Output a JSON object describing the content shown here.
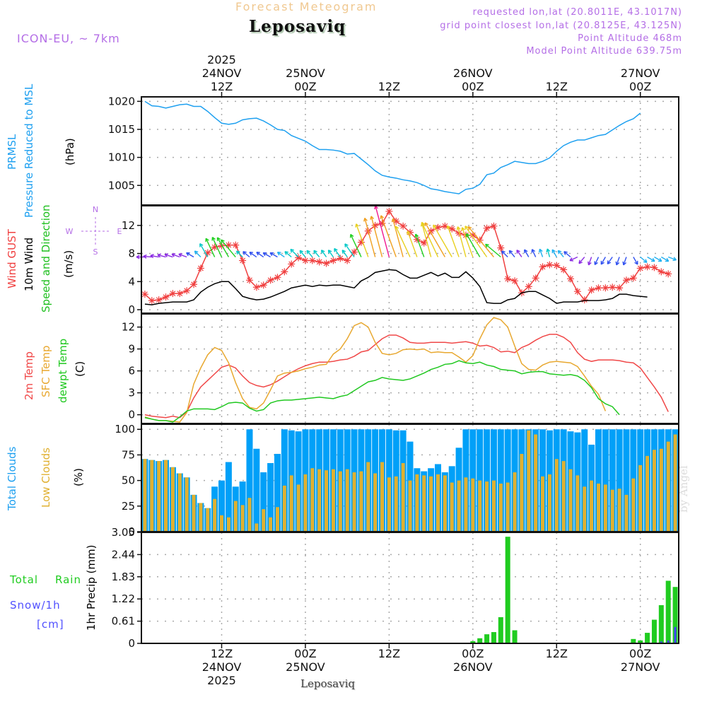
{
  "header": {
    "title": "Forecast Meteogram",
    "location": "Leposaviq",
    "model": "ICON-EU, ~ 7km",
    "requested": "requested lon,lat (20.8011E, 43.1017N)",
    "grid_point": "grid point closest lon,lat (20.8125E, 43.125N)",
    "point_altitude": "Point Altitude 468m",
    "model_altitude": "Model Point Altitude 639.75m"
  },
  "footer": {
    "location": "Leposaviq",
    "watermark": "by Angel"
  },
  "colors": {
    "pressure": "#1ea0f0",
    "gust": "#f04040",
    "wind10m": "#000000",
    "t2m": "#f04848",
    "tsfc": "#e8a830",
    "dewpt": "#20c820",
    "total_clouds": "#00a0f8",
    "low_clouds": "#e0b030",
    "rain": "#20cc20",
    "snow": "#4040ff",
    "label_purple": "#b46ee6"
  },
  "time_axis": {
    "top_labels": [
      {
        "hours": 12,
        "lines": [
          "2025",
          "24NOV",
          "12Z"
        ]
      },
      {
        "hours": 24,
        "lines": [
          "25NOV",
          "00Z"
        ]
      },
      {
        "hours": 36,
        "lines": [
          "12Z"
        ]
      },
      {
        "hours": 48,
        "lines": [
          "26NOV",
          "00Z"
        ]
      },
      {
        "hours": 60,
        "lines": [
          "12Z"
        ]
      },
      {
        "hours": 72,
        "lines": [
          "27NOV",
          "00Z"
        ]
      }
    ],
    "bottom_labels": [
      {
        "hours": 12,
        "lines": [
          "12Z",
          "24NOV",
          "2025"
        ]
      },
      {
        "hours": 24,
        "lines": [
          "00Z",
          "25NOV"
        ]
      },
      {
        "hours": 36,
        "lines": [
          "12Z"
        ]
      },
      {
        "hours": 48,
        "lines": [
          "00Z",
          "26NOV"
        ]
      },
      {
        "hours": 60,
        "lines": [
          "12Z"
        ]
      },
      {
        "hours": 72,
        "lines": [
          "00Z",
          "27NOV"
        ]
      }
    ],
    "range_hours": [
      0.5,
      77.5
    ],
    "hours_note": "hours since 24NOV2025 00Z"
  },
  "chart_data": [
    {
      "type": "line",
      "panel": "pressure",
      "labels": [
        "PRMSL",
        "Pressure Reduced to MSL"
      ],
      "ylabel": "(hPa)",
      "yticks": [
        1005,
        1010,
        1015,
        1020
      ],
      "ylim": [
        1001.5,
        1020.8
      ],
      "x_start_hour": 1,
      "x_step_hours": 1,
      "series": [
        {
          "name": "PRMSL",
          "values": [
            1020.0,
            1019.2,
            1019.1,
            1018.8,
            1019.1,
            1019.4,
            1019.5,
            1019.1,
            1019.1,
            1018.2,
            1017.1,
            1016.1,
            1015.9,
            1016.1,
            1016.7,
            1016.9,
            1017.0,
            1016.5,
            1015.8,
            1015.0,
            1014.8,
            1013.9,
            1013.4,
            1012.9,
            1012.1,
            1011.4,
            1011.4,
            1011.3,
            1011.1,
            1010.6,
            1010.7,
            1009.7,
            1008.7,
            1007.6,
            1006.8,
            1006.5,
            1006.3,
            1006.0,
            1005.8,
            1005.5,
            1005.0,
            1004.4,
            1004.2,
            1003.9,
            1003.7,
            1003.5,
            1004.3,
            1004.5,
            1005.2,
            1006.9,
            1007.2,
            1008.2,
            1008.7,
            1009.3,
            1009.1,
            1008.9,
            1008.9,
            1009.3,
            1009.9,
            1011.1,
            1012.1,
            1012.7,
            1013.1,
            1013.1,
            1013.5,
            1013.9,
            1014.1,
            1014.9,
            1015.7,
            1016.4,
            1016.9,
            1017.9
          ]
        }
      ]
    },
    {
      "type": "line",
      "panel": "wind",
      "labels": [
        "Wind GUST",
        "10m Wind",
        "Speed and Direction"
      ],
      "ylabel": "(m/s)",
      "compass": {
        "N": "N",
        "S": "S",
        "W": "W",
        "E": "E"
      },
      "yticks": [
        0,
        4,
        8,
        12
      ],
      "ylim": [
        -0.5,
        14.8
      ],
      "x_start_hour": 1,
      "x_step_hours": 1,
      "series": [
        {
          "name": "Wind GUST",
          "values": [
            2.2,
            1.3,
            1.4,
            1.8,
            2.3,
            2.3,
            2.7,
            3.6,
            5.9,
            8.1,
            8.9,
            9.1,
            9.2,
            9.2,
            7.0,
            4.2,
            3.2,
            3.5,
            4.2,
            4.6,
            5.4,
            6.5,
            7.4,
            7.0,
            7.0,
            6.8,
            6.6,
            7.0,
            7.3,
            7.0,
            8.2,
            9.6,
            11.2,
            12.0,
            12.3,
            14.0,
            12.6,
            11.9,
            11.0,
            10.0,
            9.5,
            11.2,
            11.7,
            11.9,
            11.5,
            10.9,
            10.6,
            10.6,
            9.9,
            11.6,
            11.9,
            8.8,
            4.4,
            4.1,
            2.4,
            3.3,
            4.5,
            6.1,
            6.4,
            6.3,
            5.7,
            4.4,
            2.6,
            1.4,
            2.8,
            3.1,
            3.1,
            3.2,
            3.1,
            4.2,
            4.5,
            5.9,
            6.1,
            6.0,
            5.4,
            5.1
          ]
        },
        {
          "name": "10m Wind",
          "values": [
            0.8,
            0.7,
            0.9,
            1.0,
            1.1,
            1.1,
            1.1,
            1.4,
            2.5,
            3.2,
            3.7,
            4.0,
            4.0,
            3.0,
            1.9,
            1.6,
            1.4,
            1.5,
            1.8,
            2.2,
            2.6,
            3.1,
            3.3,
            3.5,
            3.3,
            3.5,
            3.4,
            3.5,
            3.5,
            3.3,
            3.1,
            4.1,
            4.6,
            5.3,
            5.5,
            5.7,
            5.6,
            5.0,
            4.5,
            4.5,
            4.9,
            5.3,
            4.8,
            5.2,
            4.6,
            4.6,
            5.4,
            4.5,
            3.3,
            1.0,
            0.9,
            0.9,
            1.4,
            1.6,
            2.4,
            2.6,
            2.6,
            2.1,
            1.6,
            0.9,
            1.1,
            1.1,
            1.1,
            1.3,
            1.3,
            1.3,
            1.4,
            1.6,
            2.2,
            2.2,
            2.0,
            1.9,
            1.8
          ]
        },
        {
          "name": "Wind Direction (arrow toward, deg from N)",
          "values": [
            270,
            275,
            280,
            285,
            288,
            290,
            290,
            300,
            315,
            330,
            335,
            335,
            330,
            320,
            315,
            310,
            305,
            305,
            300,
            300,
            305,
            310,
            315,
            320,
            320,
            320,
            325,
            325,
            325,
            325,
            325,
            335,
            340,
            345,
            345,
            345,
            340,
            345,
            335,
            340,
            340,
            345,
            335,
            330,
            330,
            340,
            345,
            340,
            330,
            325,
            320,
            310,
            315,
            320,
            325,
            330,
            335,
            340,
            345,
            330,
            320,
            310,
            245,
            220,
            200,
            205,
            210,
            215,
            200,
            200,
            150,
            130,
            120,
            120,
            120,
            110
          ]
        }
      ]
    },
    {
      "type": "line",
      "panel": "temperature",
      "labels": [
        "2m Temp",
        "SFC Temp",
        "dewpt Temp"
      ],
      "ylabel": "(C)",
      "yticks": [
        0,
        3,
        6,
        9,
        12
      ],
      "ylim": [
        -1.2,
        13.8
      ],
      "x_start_hour": 1,
      "x_step_hours": 1,
      "series": [
        {
          "name": "2m Temp",
          "values": [
            0.0,
            -0.2,
            -0.3,
            -0.4,
            -0.2,
            -0.4,
            0.4,
            2.3,
            3.8,
            4.7,
            5.6,
            6.5,
            6.8,
            6.4,
            5.3,
            4.4,
            4.0,
            3.8,
            4.1,
            4.6,
            5.2,
            5.8,
            6.3,
            6.7,
            7.0,
            7.2,
            7.2,
            7.3,
            7.5,
            7.6,
            8.0,
            8.6,
            8.8,
            9.6,
            10.4,
            10.9,
            10.9,
            10.5,
            9.9,
            9.8,
            9.8,
            9.9,
            9.9,
            9.9,
            9.8,
            9.9,
            10.0,
            9.8,
            9.4,
            9.5,
            9.2,
            8.6,
            8.7,
            8.5,
            9.2,
            9.6,
            10.2,
            10.7,
            11.0,
            11.0,
            10.6,
            9.9,
            8.5,
            7.6,
            7.3,
            7.5,
            7.5,
            7.5,
            7.4,
            7.2,
            7.1,
            6.4,
            5.1,
            3.8,
            2.4,
            0.4
          ]
        },
        {
          "name": "SFC Temp",
          "values": [
            -0.3,
            -0.6,
            -0.8,
            -0.8,
            -0.9,
            -1.0,
            0.3,
            4.2,
            6.4,
            8.2,
            9.2,
            8.8,
            7.1,
            4.4,
            2.2,
            1.0,
            0.8,
            1.6,
            3.4,
            5.3,
            5.7,
            5.8,
            6.0,
            6.3,
            6.5,
            6.8,
            6.9,
            8.3,
            9.0,
            10.4,
            12.2,
            12.6,
            12.0,
            9.9,
            8.4,
            8.2,
            8.4,
            8.9,
            9.0,
            8.9,
            9.0,
            8.5,
            8.6,
            8.5,
            8.5,
            7.9,
            7.2,
            8.1,
            10.4,
            12.3,
            13.3,
            13.0,
            12.0,
            9.4,
            7.0,
            6.2,
            6.1,
            6.8,
            7.2,
            7.3,
            7.2,
            7.1,
            6.6,
            5.3,
            3.9,
            2.8,
            0.5
          ]
        },
        {
          "name": "dewpt Temp",
          "values": [
            -0.4,
            -0.6,
            -0.8,
            -0.8,
            -1.0,
            -0.3,
            0.5,
            0.8,
            0.8,
            0.8,
            0.7,
            1.1,
            1.6,
            1.7,
            1.6,
            0.9,
            0.5,
            0.7,
            1.6,
            1.9,
            2.0,
            2.0,
            2.1,
            2.2,
            2.3,
            2.4,
            2.3,
            2.2,
            2.5,
            2.7,
            3.3,
            3.9,
            4.5,
            4.7,
            5.1,
            4.9,
            4.8,
            4.7,
            4.9,
            5.3,
            5.7,
            6.2,
            6.5,
            6.9,
            7.0,
            7.4,
            7.1,
            7.0,
            7.2,
            6.8,
            6.6,
            6.2,
            6.1,
            6.0,
            5.6,
            5.8,
            5.9,
            5.9,
            5.6,
            5.5,
            5.4,
            5.5,
            5.3,
            4.7,
            3.7,
            2.2,
            1.5,
            1.1,
            0.0
          ]
        }
      ]
    },
    {
      "type": "bar",
      "panel": "clouds",
      "labels": [
        "Total Clouds",
        "Low Clouds"
      ],
      "ylabel": "(%)",
      "yticks": [
        0,
        25,
        50,
        75,
        100
      ],
      "ylim": [
        0,
        105
      ],
      "x_start_hour": 1,
      "x_step_hours": 1,
      "series": [
        {
          "name": "Total Clouds",
          "values": [
            71,
            70,
            69,
            70,
            63,
            57,
            53,
            36,
            28,
            23,
            44,
            50,
            68,
            44,
            49,
            100,
            81,
            58,
            67,
            76,
            100,
            99,
            98,
            100,
            100,
            100,
            100,
            100,
            100,
            100,
            100,
            100,
            100,
            100,
            100,
            100,
            99,
            99,
            88,
            62,
            59,
            62,
            66,
            58,
            64,
            82,
            100,
            100,
            100,
            100,
            100,
            100,
            100,
            100,
            100,
            100,
            100,
            100,
            99,
            100,
            100,
            98,
            97,
            100,
            85,
            100,
            100,
            100,
            100,
            100,
            100,
            100,
            100,
            100,
            100,
            100,
            100,
            100,
            100,
            100,
            100,
            100
          ]
        },
        {
          "name": "Low Clouds",
          "values": [
            71,
            70,
            69,
            70,
            63,
            57,
            53,
            36,
            28,
            23,
            32,
            16,
            14,
            30,
            26,
            33,
            8,
            22,
            14,
            24,
            45,
            55,
            46,
            56,
            62,
            61,
            60,
            61,
            59,
            61,
            58,
            59,
            68,
            57,
            68,
            53,
            54,
            67,
            50,
            56,
            55,
            54,
            56,
            55,
            48,
            50,
            53,
            52,
            50,
            49,
            50,
            47,
            48,
            58,
            76,
            99,
            95,
            54,
            56,
            71,
            69,
            61,
            55,
            44,
            50,
            47,
            46,
            41,
            42,
            36,
            52,
            65,
            74,
            80,
            81,
            88,
            95,
            82,
            72,
            62,
            78,
            100,
            100,
            100
          ]
        }
      ]
    },
    {
      "type": "bar",
      "panel": "precip",
      "labels": [
        "Total",
        "Rain",
        "Snow/1h",
        "[cm]"
      ],
      "ylabel": "1hr Precip (mm)",
      "yticks": [
        0,
        0.61,
        1.22,
        1.83,
        2.44,
        3.05
      ],
      "ylim": [
        0,
        3.05
      ],
      "x_start_hour": 1,
      "x_step_hours": 1,
      "series": [
        {
          "name": "Total Rain",
          "values": [
            0,
            0,
            0,
            0,
            0,
            0,
            0,
            0,
            0,
            0,
            0,
            0,
            0,
            0,
            0,
            0,
            0,
            0,
            0,
            0,
            0,
            0,
            0,
            0,
            0,
            0,
            0,
            0,
            0,
            0,
            0,
            0,
            0,
            0,
            0,
            0,
            0,
            0,
            0,
            0,
            0,
            0,
            0,
            0,
            0,
            0,
            0,
            0.06,
            0.14,
            0.25,
            0.31,
            0.72,
            2.93,
            0.36,
            0,
            0,
            0,
            0,
            0,
            0,
            0,
            0,
            0,
            0,
            0,
            0,
            0.02,
            0,
            0,
            0,
            0.12,
            0.08,
            0.29,
            0.65,
            1.05,
            1.72,
            1.55
          ]
        },
        {
          "name": "Snow/1h",
          "values": [
            0,
            0,
            0,
            0,
            0,
            0,
            0,
            0,
            0,
            0,
            0,
            0,
            0,
            0,
            0,
            0,
            0,
            0,
            0,
            0,
            0,
            0,
            0,
            0,
            0,
            0,
            0,
            0,
            0,
            0,
            0,
            0,
            0,
            0,
            0,
            0,
            0,
            0,
            0,
            0,
            0,
            0,
            0,
            0,
            0,
            0,
            0,
            0,
            0,
            0,
            0,
            0,
            0,
            0,
            0,
            0,
            0,
            0,
            0,
            0,
            0,
            0,
            0,
            0,
            0,
            0,
            0,
            0,
            0,
            0,
            0,
            0,
            0,
            0.02,
            0.05,
            0.08,
            0.45
          ]
        }
      ]
    }
  ]
}
